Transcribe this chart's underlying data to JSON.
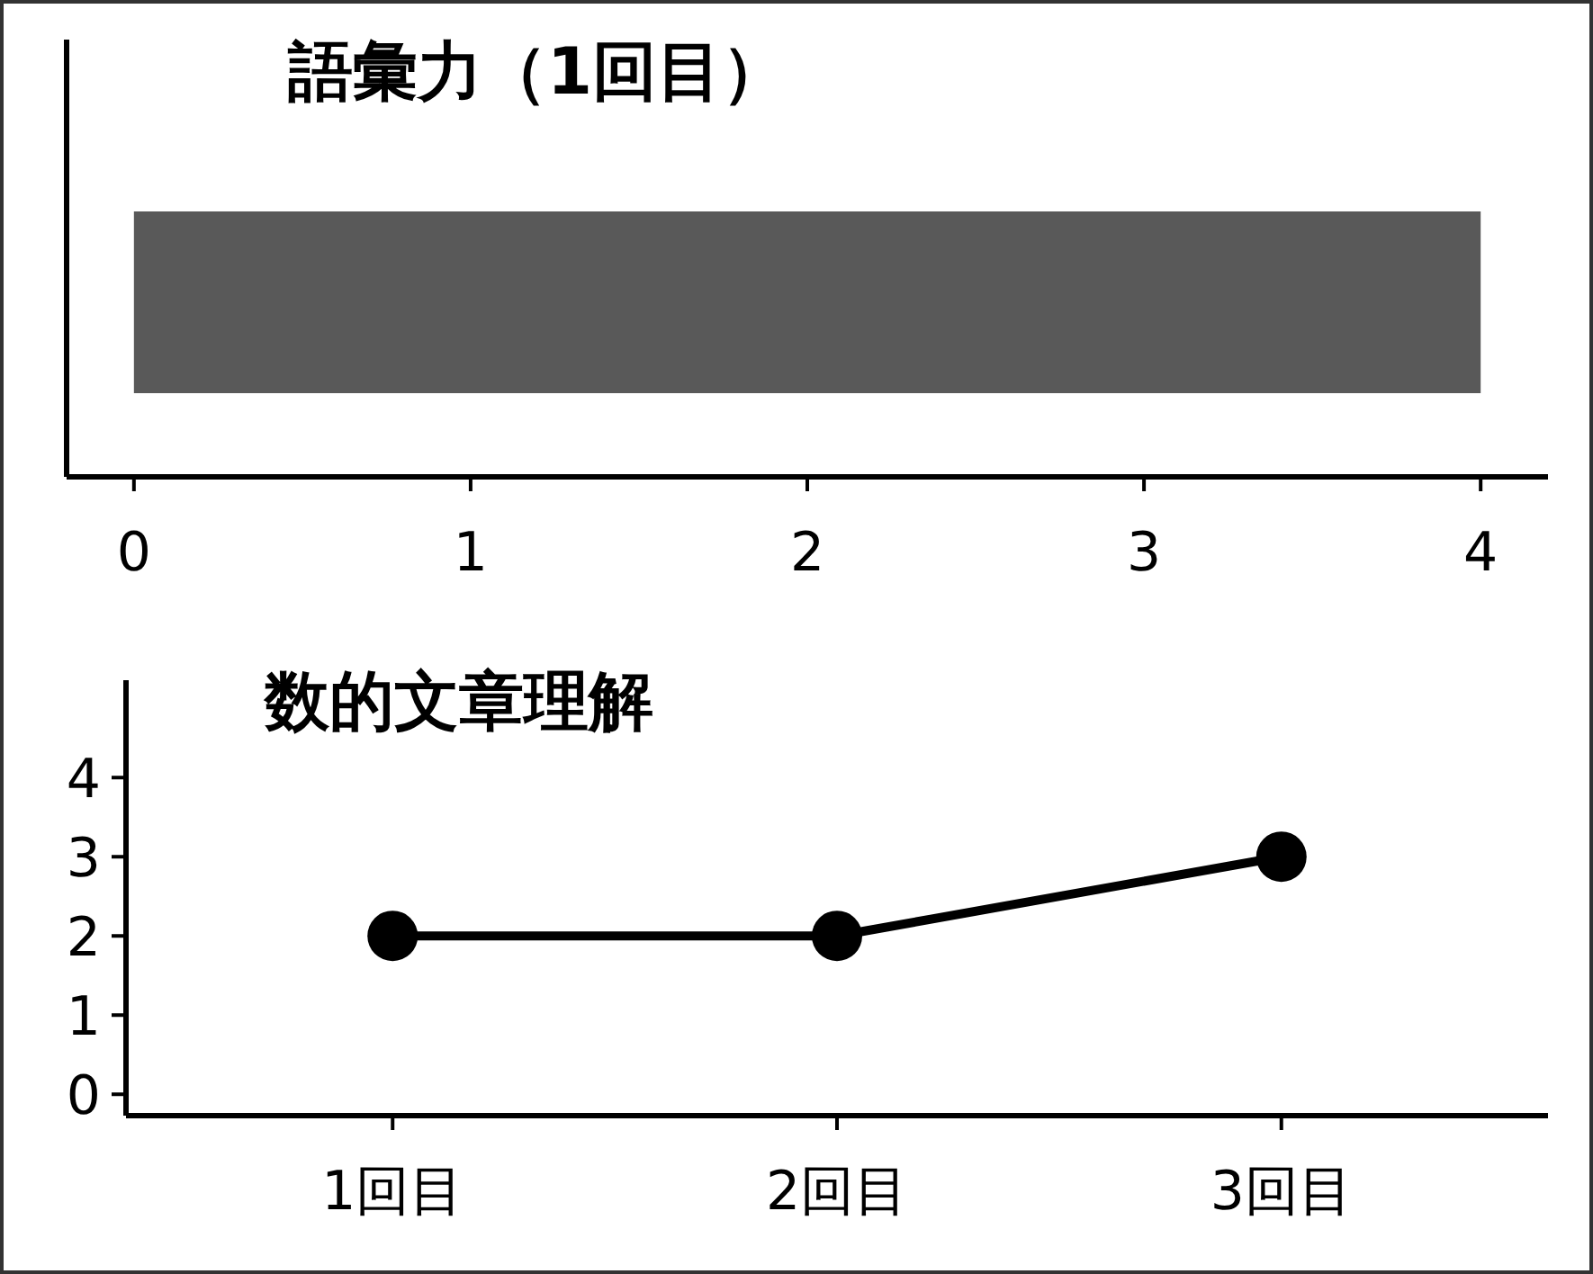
{
  "chart_data": [
    {
      "type": "bar",
      "title": "語彙力（1回目）",
      "orientation": "horizontal",
      "categories": [
        null
      ],
      "values": [
        4
      ],
      "color": "#595959",
      "xlim": [
        -0.2,
        4.2
      ],
      "xticks": [
        0,
        1,
        2,
        3,
        4
      ],
      "tick_labels": "x"
    },
    {
      "type": "line",
      "title": "数的文章理解",
      "categories": [
        "1回目",
        "2回目",
        "3回目"
      ],
      "values": [
        2,
        2,
        3
      ],
      "color": "#000000",
      "marker": "circle",
      "ylim": [
        -0.27,
        5.23
      ],
      "yticks": [
        0,
        1,
        2,
        3,
        4
      ]
    }
  ]
}
